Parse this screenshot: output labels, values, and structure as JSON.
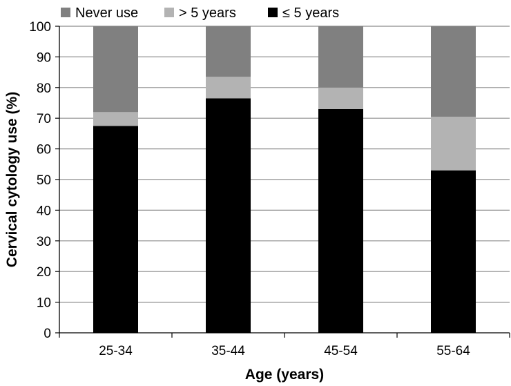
{
  "chart_data": {
    "type": "bar",
    "stacked": true,
    "categories": [
      "25-34",
      "35-44",
      "45-54",
      "55-64"
    ],
    "series": [
      {
        "name": "≤ 5 years",
        "values": [
          67.5,
          76.5,
          73,
          53
        ],
        "color": "#000000"
      },
      {
        "name": "> 5 years",
        "values": [
          4.5,
          7,
          7,
          17.5
        ],
        "color": "#b3b3b3"
      },
      {
        "name": "Never use",
        "values": [
          28,
          16.5,
          20,
          29.5
        ],
        "color": "#808080"
      }
    ],
    "legend_order": [
      "Never use",
      "> 5 years",
      "≤ 5 years"
    ],
    "legend_position": "top",
    "xlabel": "Age (years)",
    "ylabel": "Cervical cytology use  (%)",
    "ylim": [
      0,
      100
    ],
    "yticks": [
      0,
      10,
      20,
      30,
      40,
      50,
      60,
      70,
      80,
      90,
      100
    ],
    "grid": true
  }
}
